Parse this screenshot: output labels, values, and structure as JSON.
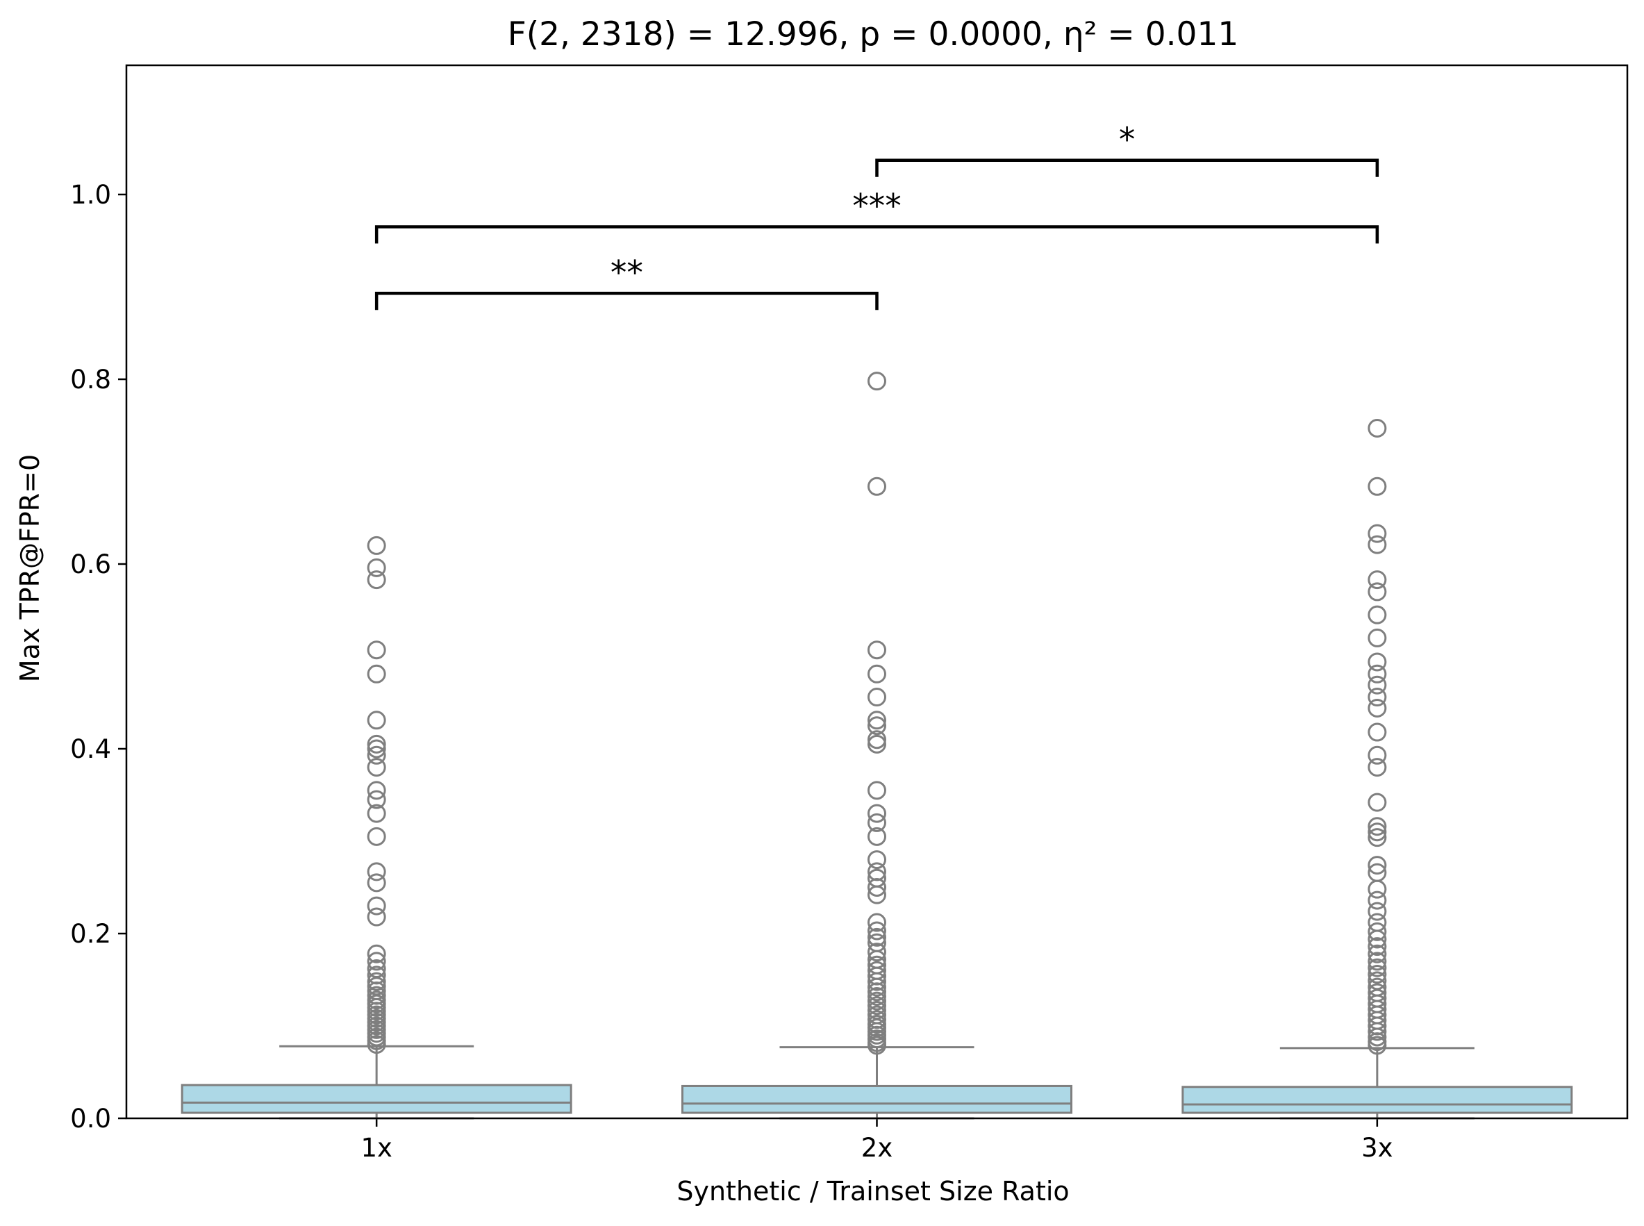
{
  "chart_data": {
    "type": "box",
    "title": "F(2, 2318) = 12.996, p = 0.0000, η² = 0.011",
    "xlabel": "Synthetic / Trainset Size Ratio",
    "ylabel": "Max TPR@FPR=0",
    "ylim": [
      0.0,
      1.14
    ],
    "yticks": [
      "0.0",
      "0.2",
      "0.4",
      "0.6",
      "0.8",
      "1.0"
    ],
    "categories": [
      "1x",
      "2x",
      "3x"
    ],
    "box_color": "#add8e6",
    "edge_color": "#7f7f7f",
    "boxes": [
      {
        "category": "1x",
        "min": 0.0,
        "q1": 0.006,
        "median": 0.017,
        "q3": 0.036,
        "whisker_high": 0.078,
        "outliers": [
          0.62,
          0.596,
          0.583,
          0.507,
          0.481,
          0.431,
          0.405,
          0.4,
          0.393,
          0.38,
          0.355,
          0.345,
          0.33,
          0.305,
          0.267,
          0.255,
          0.23,
          0.218,
          0.178,
          0.17,
          0.162,
          0.155,
          0.148,
          0.143,
          0.138,
          0.133,
          0.128,
          0.124,
          0.12,
          0.116,
          0.112,
          0.108,
          0.104,
          0.1,
          0.096,
          0.092,
          0.088,
          0.084,
          0.08
        ]
      },
      {
        "category": "2x",
        "min": 0.0,
        "q1": 0.006,
        "median": 0.016,
        "q3": 0.035,
        "whisker_high": 0.077,
        "outliers": [
          0.798,
          0.684,
          0.507,
          0.481,
          0.456,
          0.431,
          0.425,
          0.41,
          0.405,
          0.355,
          0.33,
          0.32,
          0.305,
          0.28,
          0.267,
          0.26,
          0.25,
          0.242,
          0.212,
          0.203,
          0.196,
          0.19,
          0.18,
          0.172,
          0.166,
          0.16,
          0.154,
          0.148,
          0.142,
          0.137,
          0.132,
          0.127,
          0.122,
          0.117,
          0.112,
          0.107,
          0.102,
          0.098,
          0.094,
          0.09,
          0.086,
          0.082,
          0.079
        ]
      },
      {
        "category": "3x",
        "min": 0.0,
        "q1": 0.006,
        "median": 0.015,
        "q3": 0.034,
        "whisker_high": 0.076,
        "outliers": [
          0.747,
          0.684,
          0.633,
          0.621,
          0.583,
          0.57,
          0.545,
          0.52,
          0.494,
          0.481,
          0.469,
          0.456,
          0.444,
          0.418,
          0.393,
          0.38,
          0.342,
          0.316,
          0.31,
          0.304,
          0.274,
          0.266,
          0.248,
          0.236,
          0.224,
          0.212,
          0.202,
          0.194,
          0.186,
          0.178,
          0.17,
          0.163,
          0.156,
          0.149,
          0.142,
          0.136,
          0.13,
          0.124,
          0.118,
          0.112,
          0.106,
          0.1,
          0.094,
          0.088,
          0.083,
          0.079
        ]
      }
    ],
    "significance": [
      {
        "from": "1x",
        "to": "2x",
        "y": 0.893,
        "label": "**"
      },
      {
        "from": "1x",
        "to": "3x",
        "y": 0.965,
        "label": "***"
      },
      {
        "from": "2x",
        "to": "3x",
        "y": 1.037,
        "label": "*"
      }
    ]
  }
}
